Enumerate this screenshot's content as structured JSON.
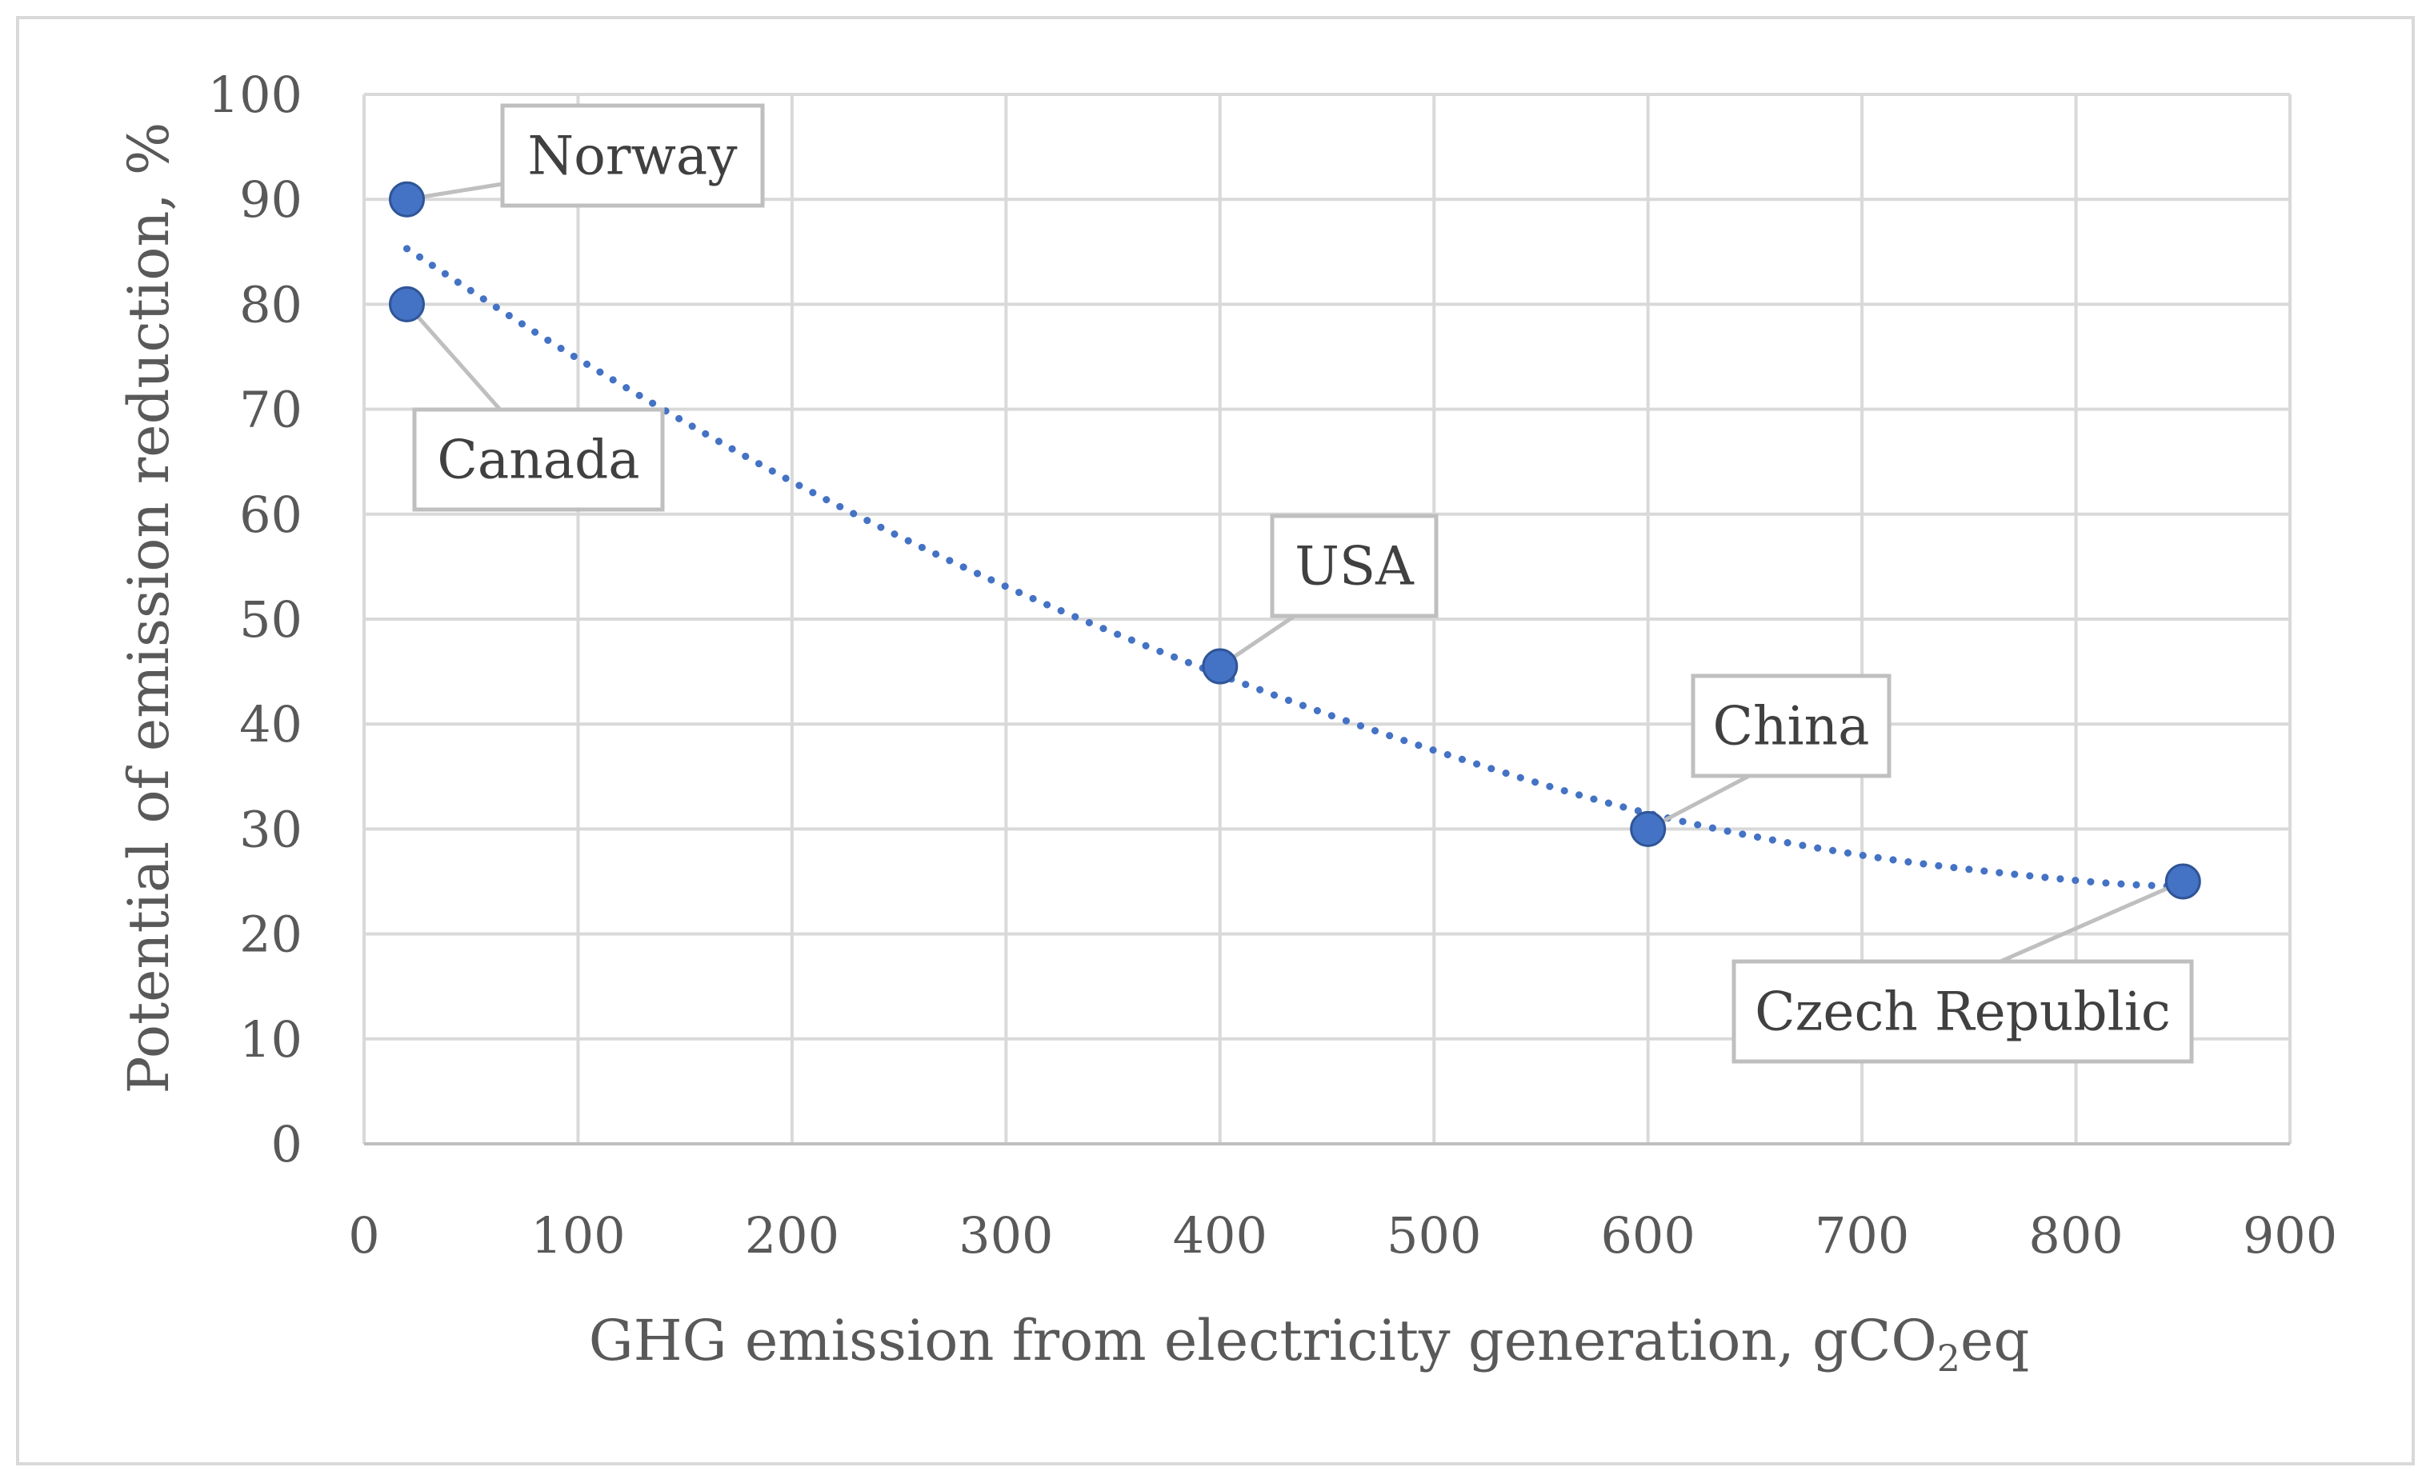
{
  "chart_data": {
    "type": "scatter",
    "title": "",
    "xlabel_main": "GHG emission from electricity generation, gCO",
    "xlabel_sub": "2",
    "xlabel_tail": "eq",
    "ylabel": "Potential of emission reduction, %",
    "xlim": [
      0,
      900
    ],
    "ylim": [
      0,
      100
    ],
    "x_ticks": [
      "0",
      "100",
      "200",
      "300",
      "400",
      "500",
      "600",
      "700",
      "800",
      "900"
    ],
    "y_ticks": [
      "0",
      "10",
      "20",
      "30",
      "40",
      "50",
      "60",
      "70",
      "80",
      "90",
      "100"
    ],
    "grid": true,
    "series": [
      {
        "name": "Countries",
        "color": "#4472c4",
        "points": [
          {
            "label": "Norway",
            "x": 20,
            "y": 90
          },
          {
            "label": "Canada",
            "x": 20,
            "y": 80
          },
          {
            "label": "USA",
            "x": 400,
            "y": 45.5
          },
          {
            "label": "China",
            "x": 600,
            "y": 30
          },
          {
            "label": "Czech Republic",
            "x": 850,
            "y": 25
          }
        ]
      }
    ],
    "trendline": {
      "type": "polynomial",
      "style": "dotted",
      "color": "#4472c4",
      "x_range": [
        20,
        850
      ],
      "samples": [
        {
          "x": 20,
          "y": 85.3
        },
        {
          "x": 100,
          "y": 74.8
        },
        {
          "x": 200,
          "y": 63.1
        },
        {
          "x": 300,
          "y": 53.1
        },
        {
          "x": 400,
          "y": 44.7
        },
        {
          "x": 500,
          "y": 37.5
        },
        {
          "x": 600,
          "y": 31.5
        },
        {
          "x": 700,
          "y": 27.5
        },
        {
          "x": 800,
          "y": 25.1
        },
        {
          "x": 850,
          "y": 24.5
        }
      ]
    }
  }
}
